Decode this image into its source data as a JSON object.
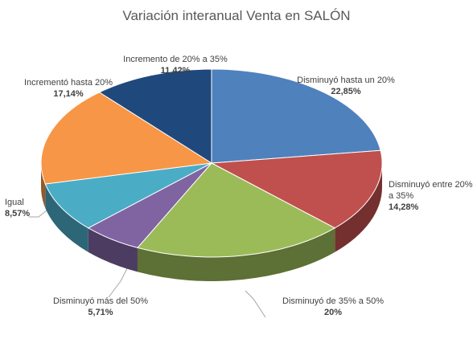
{
  "chart_data": {
    "type": "pie3d",
    "title": "Variación interanual Venta en SALÓN",
    "categories": [
      "Disminuyó hasta un 20%",
      "Disminuyó entre 20% a 35%",
      "Disminuyó de 35% a 50%",
      "Disminuyó más del 50%",
      "Igual",
      "Incrementó hasta 20%",
      "Incremento de 20% a 35%"
    ],
    "values": [
      22.85,
      14.28,
      20,
      5.71,
      8.57,
      17.14,
      11.42
    ],
    "value_labels": [
      "22,85%",
      "14,28%",
      "20%",
      "5,71%",
      "8,57%",
      "17,14%",
      "11,42%"
    ],
    "colors": [
      "#4f81bd",
      "#c0504d",
      "#9bbb59",
      "#8064a2",
      "#4bacc6",
      "#f79646",
      "#1f497d"
    ]
  }
}
